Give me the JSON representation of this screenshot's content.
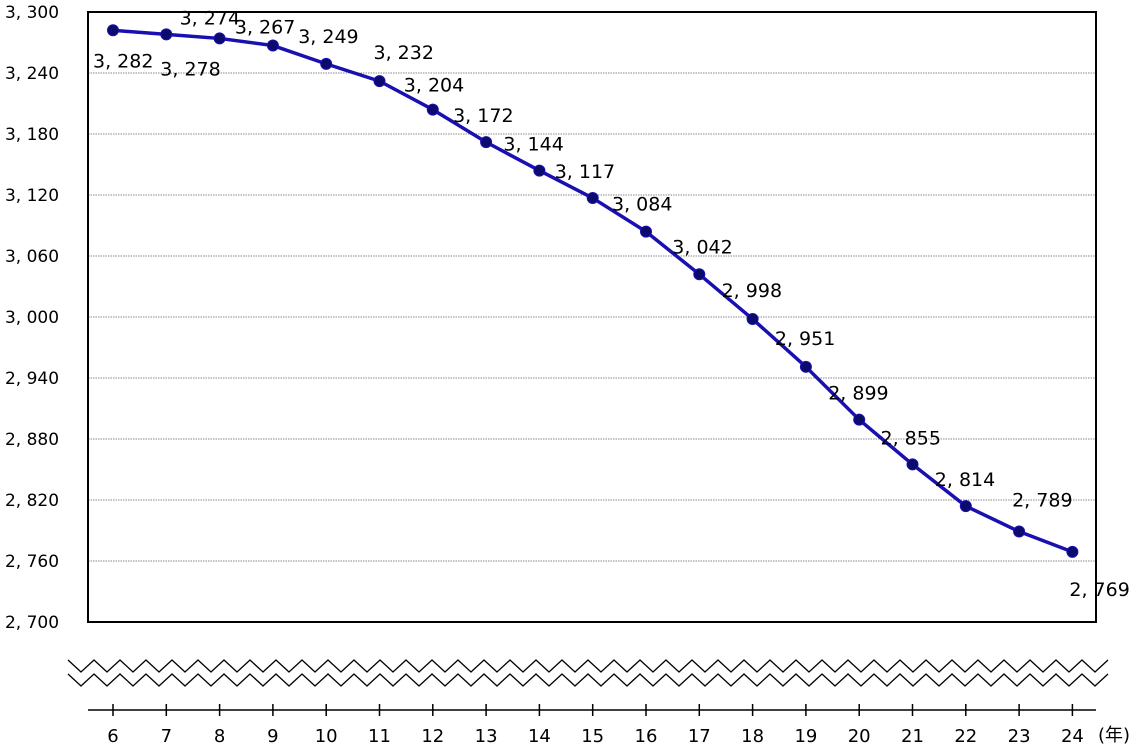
{
  "chart_data": {
    "type": "line",
    "x_unit": "(年)",
    "categories": [
      "6",
      "7",
      "8",
      "9",
      "10",
      "11",
      "12",
      "13",
      "14",
      "15",
      "16",
      "17",
      "18",
      "19",
      "20",
      "21",
      "22",
      "23",
      "24"
    ],
    "values": [
      3282,
      3278,
      3274,
      3267,
      3249,
      3232,
      3204,
      3172,
      3144,
      3117,
      3084,
      3042,
      2998,
      2951,
      2899,
      2855,
      2814,
      2789,
      2769
    ],
    "data_labels": [
      "3, 282",
      "3, 278",
      "3, 274",
      "3, 267",
      "3, 249",
      "3, 232",
      "3, 204",
      "3, 172",
      "3, 144",
      "3, 117",
      "3, 084",
      "3, 042",
      "2, 998",
      "2, 951",
      "2, 899",
      "2, 855",
      "2, 814",
      "2, 789",
      "2, 769"
    ],
    "ylim": [
      2700,
      3300
    ],
    "y_ticks": [
      3300,
      3240,
      3180,
      3120,
      3060,
      3000,
      2940,
      2880,
      2820,
      2760,
      2700
    ],
    "y_tick_labels": [
      "3, 300",
      "3, 240",
      "3, 180",
      "3, 120",
      "3, 060",
      "3, 000",
      "2, 940",
      "2, 880",
      "2, 820",
      "2, 760",
      "2, 700"
    ],
    "grid": true,
    "axis_break": true,
    "title": "",
    "xlabel": "",
    "ylabel": "",
    "line_color": "#1a0fb0",
    "marker_color": "#0b0b6e"
  }
}
